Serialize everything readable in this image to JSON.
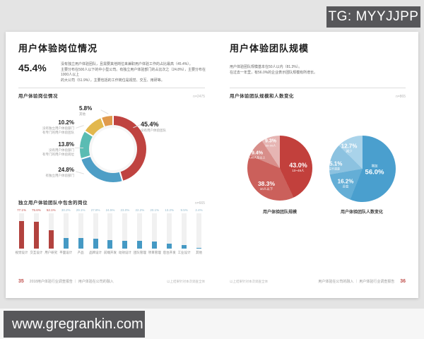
{
  "watermarks": {
    "top_right": "TG: MYYJJPP",
    "bottom_left": "www.gregrankin.com"
  },
  "left_page": {
    "title": "用户体验岗位情况",
    "headline_stat": "45.4%",
    "intro_lines": [
      "没有独立用户体验团队，且需要其他岗位来兼职用户体验工作的占比最高（45.4%）。",
      "主要分布在500人以下的中小型公司。有独立用户体验部门的占比次之（24.8%），主要分布在1000人以上",
      "的大公司（51.9%），主要包括的工作岗位是视觉、交互、用研等。"
    ],
    "donut_section": {
      "heading": "用户体验岗位情况",
      "sample": "n=2475",
      "labels": {
        "none": {
          "pct": "45.4%",
          "l1": "没有用户体验团队"
        },
        "dept": {
          "pct": "24.8%",
          "l1": "有独立用户体验部门"
        },
        "post": {
          "pct": "13.8%",
          "l1": "没有用户体验部门",
          "l2": "有专门的用户体验岗位"
        },
        "team": {
          "pct": "10.2%",
          "l1": "没有独立用户体验部门",
          "l2": "有专门的用户体验团队"
        },
        "other": {
          "pct": "5.8%",
          "l1": "其他"
        }
      }
    },
    "bar_section": {
      "heading": "独立用户体验团队中包含的岗位",
      "sample": "n=665"
    },
    "footer": {
      "page_no": "35",
      "text": "2018用户体验行业调查报告 ｜ 用户体验在公司的融入",
      "note": "以上结果针对本次调查全体"
    }
  },
  "right_page": {
    "title": "用户体验团队规模",
    "intro_lines": [
      "用户体验团队规模基本在50人以内（81.3%）。",
      "在过去一年里，有56.0%的企业表示团队规模有所增长。"
    ],
    "pies_section": {
      "heading": "用户体验团队规模和人数变化",
      "sample": "n=865",
      "size_pie": {
        "caption": "用户体验团队规模",
        "labels": [
          {
            "pct": "43.0%",
            "sub": "10~49人"
          },
          {
            "pct": "38.3%",
            "sub": "10人以下"
          },
          {
            "pct": "9.4%",
            "sub": "100人及以上"
          },
          {
            "pct": "9.3%",
            "sub": "50~99人"
          }
        ]
      },
      "change_pie": {
        "caption": "用户体验团队人数变化",
        "labels": [
          {
            "pct": "56.0%",
            "sub": "增加"
          },
          {
            "pct": "16.2%",
            "sub": "没变"
          },
          {
            "pct": "15.1%",
            "sub": "说不清楚"
          },
          {
            "pct": "12.7%",
            "sub": "减少"
          }
        ]
      }
    },
    "footer": {
      "note": "以上结果针对本次调查全体",
      "text": "用户体验在公司的融入 ｜ 用户体验行业调查报告",
      "page_no": "36"
    }
  },
  "chart_data": [
    {
      "type": "pie",
      "subtype": "donut",
      "title": "用户体验岗位情况",
      "sample": "n=2475",
      "categories": [
        "没有用户体验团队",
        "有独立用户体验部门",
        "没有用户体验部门，有专门的用户体验岗位",
        "没有独立用户体验部门，有专门的用户体验团队",
        "其他"
      ],
      "values": [
        45.4,
        24.8,
        13.8,
        10.2,
        5.8
      ],
      "colors": [
        "#bf4340",
        "#4e9ec6",
        "#5abcb3",
        "#e2b84e",
        "#e09a4c"
      ]
    },
    {
      "type": "bar",
      "title": "独立用户体验团队中包含的岗位",
      "sample": "n=665",
      "ylim": [
        0,
        100
      ],
      "unit": "%",
      "categories": [
        "视觉设计",
        "交互设计",
        "用户研究",
        "平面设计",
        "产品",
        "品牌设计",
        "前端开发",
        "动效设计",
        "团队管理",
        "项目管理",
        "后台开发",
        "工业设计",
        "其他"
      ],
      "values": [
        77.1,
        75.6,
        52.1,
        30.2,
        29.1,
        27.8,
        24.5,
        23.0,
        22.2,
        20.1,
        13.2,
        9.5,
        2.4
      ],
      "colors": [
        "#b2423e",
        "#b2423e",
        "#b2423e",
        "#4599c4",
        "#4599c4",
        "#4599c4",
        "#4599c4",
        "#4599c4",
        "#4599c4",
        "#4599c4",
        "#4599c4",
        "#4599c4",
        "#4599c4"
      ],
      "value_colors": [
        "#c0504d",
        "#c0504d",
        "#c0504d",
        "#93b9cc",
        "#93b9cc",
        "#93b9cc",
        "#93b9cc",
        "#93b9cc",
        "#93b9cc",
        "#93b9cc",
        "#93b9cc",
        "#93b9cc",
        "#93b9cc"
      ]
    },
    {
      "type": "pie",
      "title": "用户体验团队规模",
      "sample": "n=865",
      "categories": [
        "10~49人",
        "10人以下",
        "100人及以上",
        "50~99人"
      ],
      "values": [
        43.0,
        38.3,
        9.4,
        9.3
      ],
      "colors": [
        "#c2403c",
        "#cb605b",
        "#d88e8a",
        "#e6b5b3"
      ]
    },
    {
      "type": "pie",
      "title": "用户体验团队人数变化",
      "sample": "n=865",
      "categories": [
        "增加",
        "没变",
        "说不清楚",
        "减少"
      ],
      "values": [
        56.0,
        16.2,
        15.1,
        12.7
      ],
      "colors": [
        "#4a9fce",
        "#64aed6",
        "#8cc2e0",
        "#a9d3ea"
      ]
    }
  ]
}
